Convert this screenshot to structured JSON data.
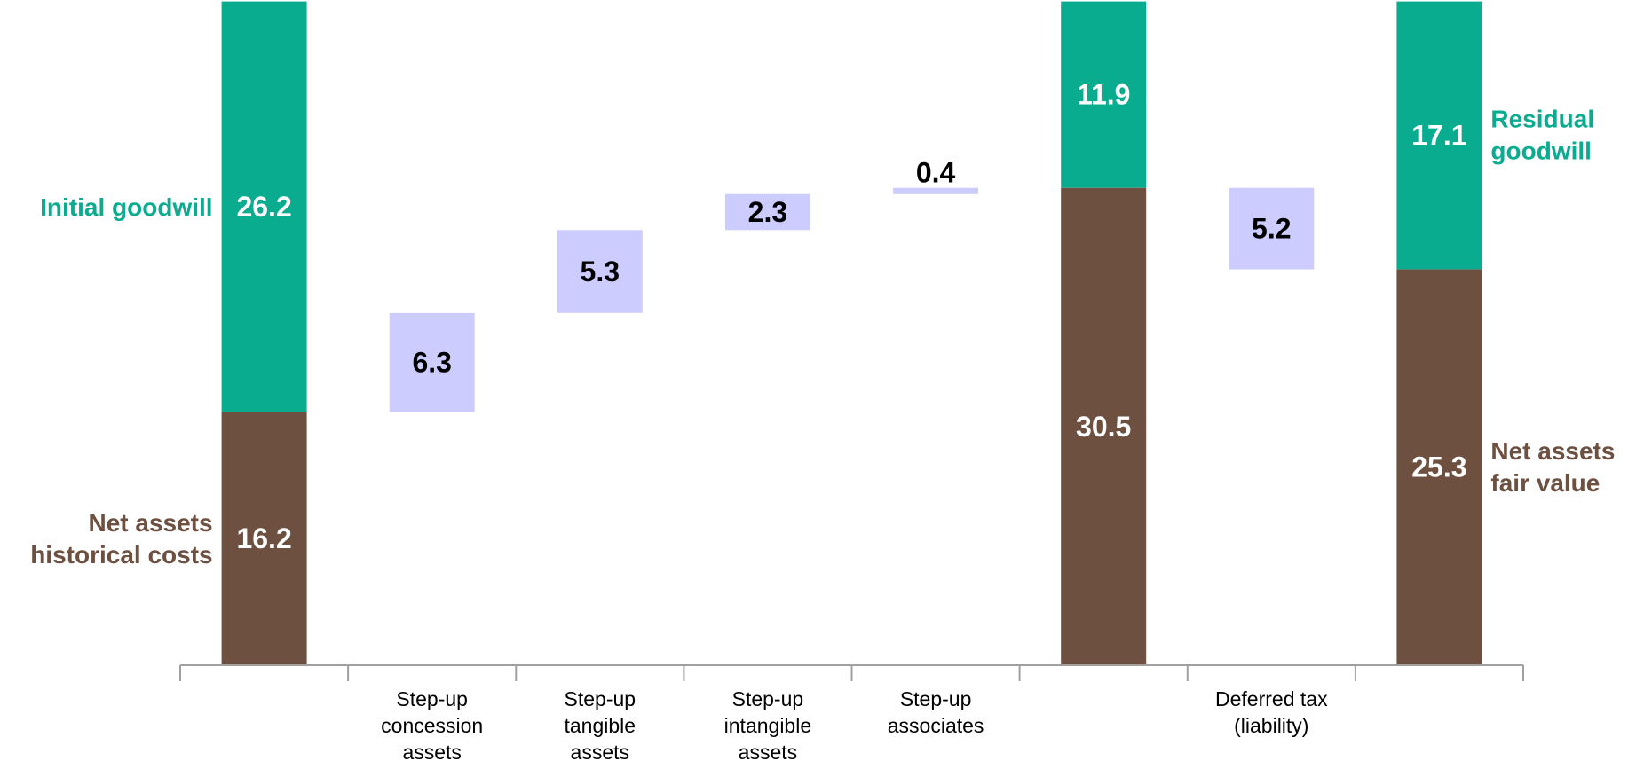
{
  "chart_data": {
    "type": "bar",
    "subtype": "waterfall",
    "ylim": [
      0,
      44
    ],
    "grid": false,
    "legend": "none",
    "colors": {
      "goodwill": "#0AAC90",
      "net_assets": "#6E5040",
      "step": "#CCCCFF",
      "axis": "#A0A0A0",
      "step_label": "#000000",
      "bar_label": "#FFFFFF"
    },
    "columns": [
      {
        "category": [],
        "segments": [
          {
            "kind": "net_assets",
            "base": 0,
            "value": 16.2,
            "label": "16.2"
          },
          {
            "kind": "goodwill",
            "base": 16.2,
            "value": 26.2,
            "label": "26.2"
          }
        ]
      },
      {
        "category": [
          "Step-up",
          "concession",
          "assets"
        ],
        "segments": [
          {
            "kind": "step",
            "base": 16.2,
            "value": 6.3,
            "label": "6.3"
          }
        ]
      },
      {
        "category": [
          "Step-up",
          "tangible",
          "assets"
        ],
        "segments": [
          {
            "kind": "step",
            "base": 22.5,
            "value": 5.3,
            "label": "5.3"
          }
        ]
      },
      {
        "category": [
          "Step-up",
          "intangible",
          "assets"
        ],
        "segments": [
          {
            "kind": "step",
            "base": 27.8,
            "value": 2.3,
            "label": "2.3"
          }
        ]
      },
      {
        "category": [
          "Step-up",
          "associates"
        ],
        "segments": [
          {
            "kind": "step",
            "base": 30.1,
            "value": 0.4,
            "label": "0.4",
            "label_above": true
          }
        ]
      },
      {
        "category": [],
        "segments": [
          {
            "kind": "net_assets",
            "base": 0,
            "value": 30.5,
            "label": "30.5"
          },
          {
            "kind": "goodwill",
            "base": 30.5,
            "value": 11.9,
            "label": "11.9"
          }
        ]
      },
      {
        "category": [
          "Deferred tax",
          "(liability)"
        ],
        "segments": [
          {
            "kind": "step",
            "base": 25.3,
            "value": 5.2,
            "label": "5.2"
          }
        ]
      },
      {
        "category": [],
        "segments": [
          {
            "kind": "net_assets",
            "base": 0,
            "value": 25.3,
            "label": "25.3"
          },
          {
            "kind": "goodwill",
            "base": 25.3,
            "value": 17.1,
            "label": "17.1"
          }
        ]
      }
    ],
    "side_labels": [
      {
        "side": "left",
        "column": 0,
        "kind": "goodwill",
        "level": 29.3,
        "lines": [
          "Initial goodwill"
        ]
      },
      {
        "side": "left",
        "column": 0,
        "kind": "net_assets",
        "level": 8.1,
        "lines": [
          "Net assets",
          "historical costs"
        ]
      },
      {
        "side": "right",
        "column": 7,
        "kind": "goodwill",
        "level": 33.9,
        "lines": [
          "Residual",
          "goodwill"
        ]
      },
      {
        "side": "right",
        "column": 7,
        "kind": "net_assets",
        "level": 12.7,
        "lines": [
          "Net assets",
          "fair value"
        ]
      }
    ]
  }
}
